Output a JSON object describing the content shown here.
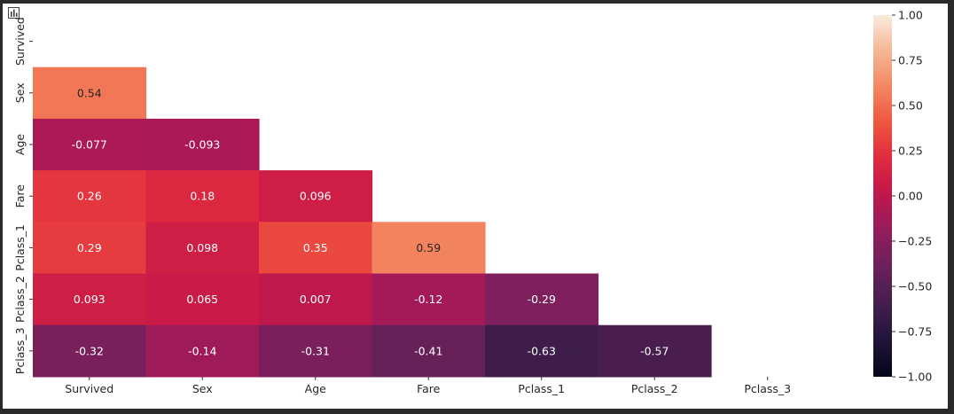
{
  "toolbar": {
    "icon": "bar-chart-icon"
  },
  "chart_data": {
    "type": "heatmap",
    "title": "",
    "xlabel": "",
    "ylabel": "",
    "columns": [
      "Survived",
      "Sex",
      "Age",
      "Fare",
      "Pclass_1",
      "Pclass_2",
      "Pclass_3"
    ],
    "rows": [
      "Survived",
      "Sex",
      "Age",
      "Fare",
      "Pclass_1",
      "Pclass_2",
      "Pclass_3"
    ],
    "mask": "upper triangle including diagonal",
    "values": [
      [
        null,
        null,
        null,
        null,
        null,
        null,
        null
      ],
      [
        0.54,
        null,
        null,
        null,
        null,
        null,
        null
      ],
      [
        -0.077,
        -0.093,
        null,
        null,
        null,
        null,
        null
      ],
      [
        0.26,
        0.18,
        0.096,
        null,
        null,
        null,
        null
      ],
      [
        0.29,
        0.098,
        0.35,
        0.59,
        null,
        null,
        null
      ],
      [
        0.093,
        0.065,
        0.007,
        -0.12,
        -0.29,
        null,
        null
      ],
      [
        -0.32,
        -0.14,
        -0.31,
        -0.41,
        -0.63,
        -0.57,
        null
      ]
    ],
    "labels": [
      [
        null,
        null,
        null,
        null,
        null,
        null,
        null
      ],
      [
        "0.54",
        null,
        null,
        null,
        null,
        null,
        null
      ],
      [
        "-0.077",
        "-0.093",
        null,
        null,
        null,
        null,
        null
      ],
      [
        "0.26",
        "0.18",
        "0.096",
        null,
        null,
        null,
        null
      ],
      [
        "0.29",
        "0.098",
        "0.35",
        "0.59",
        null,
        null,
        null
      ],
      [
        "0.093",
        "0.065",
        "0.007",
        "-0.12",
        "-0.29",
        null,
        null
      ],
      [
        "-0.32",
        "-0.14",
        "-0.31",
        "-0.41",
        "-0.63",
        "-0.57",
        null
      ]
    ],
    "vmin": -1,
    "vmax": 1,
    "colormap": "rocket",
    "colorbar": {
      "ticks": [
        1.0,
        0.75,
        0.5,
        0.25,
        0.0,
        -0.25,
        -0.5,
        -0.75,
        -1.0
      ],
      "tick_labels": [
        "1.00",
        "0.75",
        "0.50",
        "0.25",
        "0.00",
        "−0.25",
        "−0.50",
        "−0.75",
        "−1.00"
      ]
    }
  }
}
